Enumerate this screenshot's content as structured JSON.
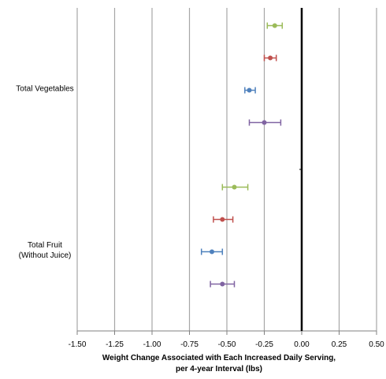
{
  "chart_data": {
    "type": "scatter",
    "orientation": "horizontal",
    "error_bars": true,
    "title": "",
    "xlabel": "Weight Change Associated with Each Increased Daily Serving,\nper 4-year Interval (lbs)",
    "xlabel_lines": [
      "Weight Change Associated with Each Increased Daily Serving,",
      "per 4-year Interval (lbs)"
    ],
    "xlim": [
      -1.5,
      0.5
    ],
    "xticks": [
      -1.5,
      -1.25,
      -1.0,
      -0.75,
      -0.5,
      -0.25,
      0.0,
      0.25,
      0.5
    ],
    "xtick_labels": [
      "-1.50",
      "-1.25",
      "-1.00",
      "-0.75",
      "-0.50",
      "-0.25",
      "0.00",
      "0.25",
      "0.50"
    ],
    "grid": "vertical",
    "reference_line_x": 0.0,
    "categories": [
      {
        "label_lines": [
          "Total Vegetables"
        ],
        "points": [
          {
            "value": -0.18,
            "low": -0.23,
            "high": -0.13,
            "color": "#9bbb59"
          },
          {
            "value": -0.21,
            "low": -0.25,
            "high": -0.17,
            "color": "#c0504d"
          },
          {
            "value": -0.35,
            "low": -0.38,
            "high": -0.31,
            "color": "#4f81bd"
          },
          {
            "value": -0.25,
            "low": -0.35,
            "high": -0.14,
            "color": "#8064a2"
          }
        ]
      },
      {
        "label_lines": [
          "Total Fruit",
          "(Without Juice)"
        ],
        "points": [
          {
            "value": -0.45,
            "low": -0.53,
            "high": -0.36,
            "color": "#9bbb59"
          },
          {
            "value": -0.53,
            "low": -0.59,
            "high": -0.46,
            "color": "#c0504d"
          },
          {
            "value": -0.6,
            "low": -0.67,
            "high": -0.53,
            "color": "#4f81bd"
          },
          {
            "value": -0.53,
            "low": -0.61,
            "high": -0.45,
            "color": "#8064a2"
          }
        ]
      }
    ]
  }
}
